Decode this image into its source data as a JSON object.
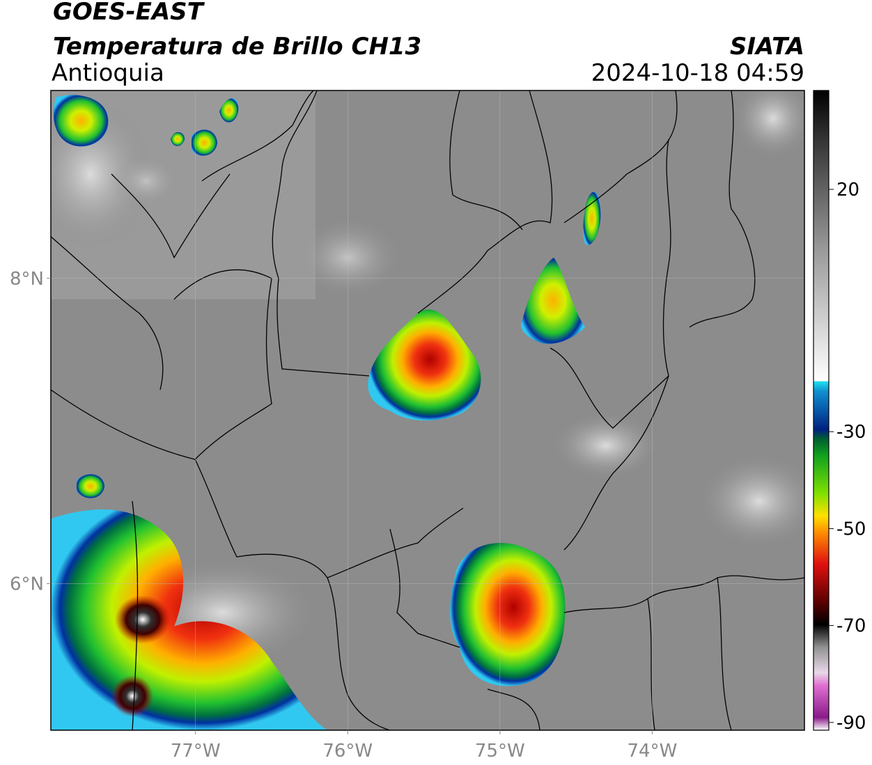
{
  "header": {
    "product": "GOES-EAST",
    "title": "Temperatura de Brillo CH13",
    "region": "Antioquia",
    "agency": "SIATA",
    "timestamp": "2024-10-18 04:59"
  },
  "map": {
    "lonlim": [
      -77.95,
      -73
    ],
    "latlim": [
      5.04,
      9.23
    ],
    "lon_ticks": [
      {
        "value": -77,
        "label": "77°W"
      },
      {
        "value": -76,
        "label": "76°W"
      },
      {
        "value": -75,
        "label": "75°W"
      },
      {
        "value": -74,
        "label": "74°W"
      }
    ],
    "lat_ticks": [
      {
        "value": 8,
        "label": "8°N"
      },
      {
        "value": 6,
        "label": "6°N"
      }
    ]
  },
  "colorbar": {
    "lim": [
      -91.6,
      40.4
    ],
    "ticks": [
      20,
      -30,
      -50,
      -70,
      -90
    ]
  }
}
